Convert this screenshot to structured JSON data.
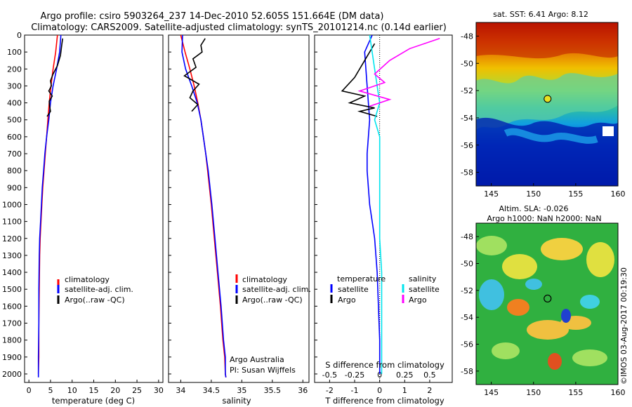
{
  "title_line1": "Argo profile: csiro 5903264_237 14-Dec-2010 52.605S 151.664E (DM data)",
  "title_line2": "Climatology: CARS2009. Satellite-adjusted climatology: synTS_20101214.nc (0.14d earlier)",
  "colors": {
    "climatology": "#ff0000",
    "satellite": "#0000ff",
    "argo": "#000000",
    "sat_salinity": "#00e5ee",
    "argo_salinity": "#ff00ff"
  },
  "chart_data": [
    {
      "type": "line",
      "name": "temperature",
      "xlabel": "temperature (deg C)",
      "ylabel": "",
      "xlim": [
        -1,
        31
      ],
      "ylim": [
        2050,
        0
      ],
      "xticks": [
        "0",
        "5",
        "10",
        "15",
        "20",
        "25",
        "30"
      ],
      "yticks": [
        "0",
        "100",
        "200",
        "300",
        "400",
        "500",
        "600",
        "700",
        "800",
        "900",
        "1000",
        "1100",
        "1200",
        "1300",
        "1400",
        "1500",
        "1600",
        "1700",
        "1800",
        "1900",
        "2000"
      ],
      "legend": [
        "climatology",
        "satellite-adj. clim.",
        "Argo(..raw -QC)"
      ],
      "series": [
        {
          "name": "climatology",
          "x": [
            6.6,
            6.2,
            5.6,
            5.1,
            4.7,
            4.4,
            4.1,
            3.8,
            3.5,
            3.2,
            3.0,
            2.8,
            2.6,
            2.5,
            2.4,
            2.3,
            2.3,
            2.2
          ],
          "y": [
            0,
            100,
            200,
            300,
            400,
            500,
            600,
            700,
            800,
            900,
            1000,
            1100,
            1200,
            1300,
            1500,
            1700,
            1900,
            2000
          ]
        },
        {
          "name": "satellite-adj. clim.",
          "x": [
            7.4,
            7.1,
            6.4,
            5.6,
            5.0,
            4.6,
            4.1,
            3.7,
            3.4,
            3.1,
            2.9,
            2.7,
            2.5,
            2.4,
            2.3,
            2.3,
            2.2,
            2.2
          ],
          "y": [
            0,
            100,
            200,
            300,
            400,
            500,
            600,
            700,
            800,
            900,
            1000,
            1100,
            1200,
            1300,
            1500,
            1700,
            1900,
            2020
          ]
        },
        {
          "name": "Argo(..raw -QC)",
          "x": [
            7.8,
            7.6,
            7.3,
            6.6,
            5.6,
            5.0,
            5.2,
            4.6,
            5.4,
            4.7,
            4.8,
            5.0,
            4.2
          ],
          "y": [
            20,
            60,
            120,
            180,
            230,
            270,
            300,
            330,
            360,
            390,
            420,
            450,
            480
          ]
        }
      ]
    },
    {
      "type": "line",
      "name": "salinity",
      "xlabel": "salinity",
      "ylabel": "",
      "xlim": [
        33.8,
        36.1
      ],
      "ylim": [
        2050,
        0
      ],
      "xticks": [
        "34",
        "34.5",
        "35",
        "35.5",
        "36"
      ],
      "legend": [
        "climatology",
        "satellite-adj. clim.",
        "Argo(..raw -QC)"
      ],
      "annotation": [
        "Argo Australia",
        "PI: Susan Wijffels"
      ],
      "series": [
        {
          "name": "climatology",
          "x": [
            34.0,
            34.07,
            34.15,
            34.22,
            34.28,
            34.33,
            34.37,
            34.41,
            34.44,
            34.5,
            34.55,
            34.6,
            34.65,
            34.69,
            34.72,
            34.73,
            34.74
          ],
          "y": [
            0,
            100,
            200,
            300,
            400,
            500,
            600,
            700,
            800,
            1000,
            1200,
            1400,
            1600,
            1800,
            1900,
            2000,
            2020
          ]
        },
        {
          "name": "satellite-adj. clim.",
          "x": [
            34.03,
            34.02,
            34.08,
            34.18,
            34.27,
            34.33,
            34.37,
            34.41,
            34.45,
            34.51,
            34.56,
            34.61,
            34.66,
            34.7,
            34.73,
            34.73,
            34.74
          ],
          "y": [
            0,
            100,
            200,
            300,
            400,
            500,
            600,
            700,
            800,
            1000,
            1200,
            1400,
            1600,
            1800,
            1900,
            2000,
            2020
          ]
        },
        {
          "name": "Argo(..raw -QC)",
          "x": [
            34.4,
            34.33,
            34.35,
            34.2,
            34.25,
            34.06,
            34.3,
            34.2,
            34.15,
            34.28,
            34.18
          ],
          "y": [
            20,
            60,
            100,
            140,
            190,
            240,
            290,
            330,
            370,
            410,
            450
          ]
        }
      ]
    },
    {
      "type": "line",
      "name": "difference",
      "xlabel": "T difference from climatology",
      "xlabel_top": "S difference from climatology",
      "xlim": [
        -2.6,
        2.9
      ],
      "ylim": [
        2050,
        0
      ],
      "xticks": [
        "-2",
        "-1",
        "0",
        "1",
        "2"
      ],
      "xticks_top": [
        "-0.5",
        "-0.25",
        "0",
        "0.25",
        "0.5"
      ],
      "legend_temperature_title": "temperature",
      "legend_salinity_title": "salinity",
      "legend_temperature": [
        "satellite",
        "Argo"
      ],
      "legend_salinity": [
        "satellite",
        "Argo"
      ],
      "series": [
        {
          "name": "temperature satellite",
          "x": [
            -0.3,
            -0.6,
            -0.5,
            -0.4,
            -0.45,
            -0.5,
            -0.5,
            -0.45,
            -0.4,
            -0.3,
            -0.2,
            -0.1,
            -0.05,
            0,
            0
          ],
          "y": [
            0,
            100,
            300,
            500,
            600,
            700,
            800,
            900,
            1000,
            1100,
            1200,
            1400,
            1600,
            1800,
            2000
          ]
        },
        {
          "name": "temperature Argo",
          "x": [
            -0.2,
            -0.6,
            -1.0,
            -1.5,
            -0.6,
            -1.2,
            -0.2,
            -0.8,
            -0.1
          ],
          "y": [
            50,
            150,
            250,
            330,
            360,
            400,
            430,
            450,
            480
          ]
        },
        {
          "name": "salinity satellite",
          "x": [
            -0.1,
            -0.05,
            0.0,
            -0.05,
            0.0,
            0.0,
            0.0,
            0.0,
            0.02,
            0.02,
            0.02
          ],
          "y": [
            0,
            200,
            400,
            500,
            600,
            800,
            1000,
            1200,
            1400,
            1700,
            2000
          ]
        },
        {
          "name": "salinity Argo",
          "x": [
            0.6,
            0.3,
            0.1,
            -0.05,
            0.05,
            -0.2,
            0.1,
            -0.1
          ],
          "y": [
            20,
            80,
            150,
            230,
            280,
            330,
            380,
            420
          ]
        }
      ]
    }
  ],
  "map_sst": {
    "title": "sat. SST: 6.41  Argo: 8.12",
    "xticks": [
      "145",
      "150",
      "155",
      "160"
    ],
    "yticks": [
      "-48",
      "-50",
      "-52",
      "-54",
      "-56",
      "-58"
    ],
    "float_lon": 151.664,
    "float_lat": -52.605
  },
  "map_sla": {
    "title_line1": "Altim. SLA: -0.026",
    "title_line2": "Argo h1000: NaN h2000: NaN",
    "xticks": [
      "145",
      "150",
      "155",
      "160"
    ],
    "yticks": [
      "-48",
      "-50",
      "-52",
      "-54",
      "-56",
      "-58"
    ],
    "float_lon": 151.664,
    "float_lat": -52.605
  },
  "credit": "©IMOS 03-Aug-2017 00:19:30"
}
